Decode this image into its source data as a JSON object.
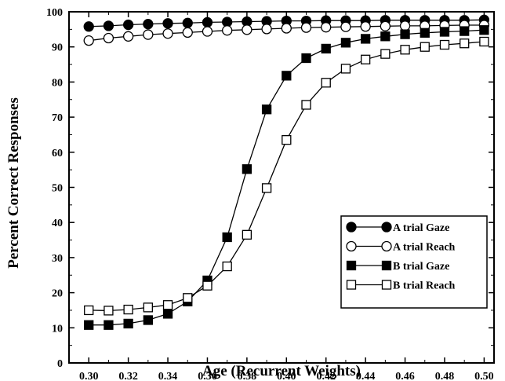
{
  "chart_data": {
    "type": "line",
    "title": "",
    "xlabel": "Age (Recurrent Weights)",
    "ylabel": "Percent Correct Responses",
    "xlim": [
      0.29,
      0.505
    ],
    "ylim": [
      0,
      100
    ],
    "xticks": [
      "0.30",
      "0.32",
      "0.34",
      "0.36",
      "0.38",
      "0.40",
      "0.42",
      "0.44",
      "0.46",
      "0.48",
      "0.50"
    ],
    "yticks": [
      "0",
      "10",
      "20",
      "30",
      "40",
      "50",
      "60",
      "70",
      "80",
      "90",
      "100"
    ],
    "grid": false,
    "legend_position": "lower-right",
    "x": [
      0.3,
      0.31,
      0.32,
      0.33,
      0.34,
      0.35,
      0.36,
      0.37,
      0.38,
      0.39,
      0.4,
      0.41,
      0.42,
      0.43,
      0.44,
      0.45,
      0.46,
      0.47,
      0.48,
      0.49,
      0.5
    ],
    "series": [
      {
        "name": "A trial Gaze",
        "marker": "circle",
        "filled": true,
        "values": [
          95.8,
          96.0,
          96.3,
          96.5,
          96.7,
          96.8,
          97.0,
          97.1,
          97.2,
          97.3,
          97.4,
          97.4,
          97.5,
          97.5,
          97.5,
          97.6,
          97.6,
          97.6,
          97.6,
          97.6,
          97.7
        ]
      },
      {
        "name": "A trial Reach",
        "marker": "circle",
        "filled": false,
        "values": [
          91.8,
          92.5,
          93.0,
          93.5,
          93.8,
          94.1,
          94.4,
          94.7,
          94.9,
          95.1,
          95.3,
          95.5,
          95.6,
          95.7,
          95.8,
          95.9,
          96.0,
          96.0,
          96.1,
          96.2,
          96.2
        ]
      },
      {
        "name": "B trial Gaze",
        "marker": "square",
        "filled": true,
        "values": [
          10.8,
          10.8,
          11.2,
          12.2,
          14.0,
          17.5,
          23.5,
          35.8,
          55.2,
          72.2,
          81.8,
          86.8,
          89.5,
          91.2,
          92.3,
          93.0,
          93.6,
          94.0,
          94.3,
          94.5,
          94.8
        ]
      },
      {
        "name": "B trial Reach",
        "marker": "square",
        "filled": false,
        "values": [
          15.0,
          14.9,
          15.2,
          15.8,
          16.5,
          18.5,
          22.0,
          27.5,
          36.5,
          49.8,
          63.5,
          73.5,
          79.8,
          83.8,
          86.4,
          88.0,
          89.2,
          90.0,
          90.6,
          91.0,
          91.5
        ]
      }
    ]
  }
}
